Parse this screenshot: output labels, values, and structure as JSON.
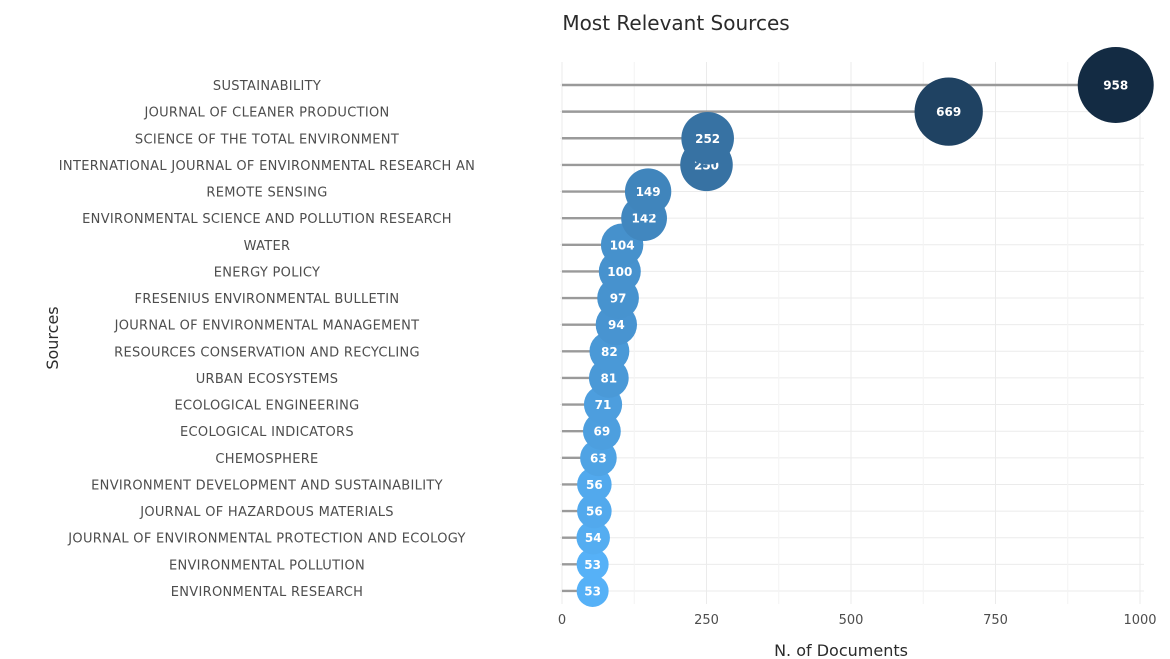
{
  "chart_data": {
    "type": "scatter",
    "title": "Most Relevant Sources",
    "xlabel": "N. of Documents",
    "ylabel": "Sources",
    "xlim": [
      0,
      1000
    ],
    "xticks": [
      0,
      250,
      500,
      750,
      1000
    ],
    "grid": true,
    "categories": [
      "SUSTAINABILITY",
      "JOURNAL OF CLEANER PRODUCTION",
      "SCIENCE OF THE TOTAL ENVIRONMENT",
      "INTERNATIONAL JOURNAL OF ENVIRONMENTAL RESEARCH AN",
      "REMOTE SENSING",
      "ENVIRONMENTAL SCIENCE AND POLLUTION RESEARCH",
      "WATER",
      "ENERGY POLICY",
      "FRESENIUS ENVIRONMENTAL BULLETIN",
      "JOURNAL OF ENVIRONMENTAL MANAGEMENT",
      "RESOURCES CONSERVATION AND RECYCLING",
      "URBAN ECOSYSTEMS",
      "ECOLOGICAL ENGINEERING",
      "ECOLOGICAL INDICATORS",
      "CHEMOSPHERE",
      "ENVIRONMENT DEVELOPMENT AND SUSTAINABILITY",
      "JOURNAL OF HAZARDOUS MATERIALS",
      "JOURNAL OF ENVIRONMENTAL PROTECTION AND ECOLOGY",
      "ENVIRONMENTAL POLLUTION",
      "ENVIRONMENTAL RESEARCH"
    ],
    "values": [
      958,
      669,
      252,
      250,
      149,
      142,
      104,
      100,
      97,
      94,
      82,
      81,
      71,
      69,
      63,
      56,
      56,
      54,
      53,
      53
    ],
    "colors": {
      "low": "#56B1F7",
      "high": "#132B43",
      "stem": "#9a9a9a",
      "label": "#ffffff"
    }
  }
}
